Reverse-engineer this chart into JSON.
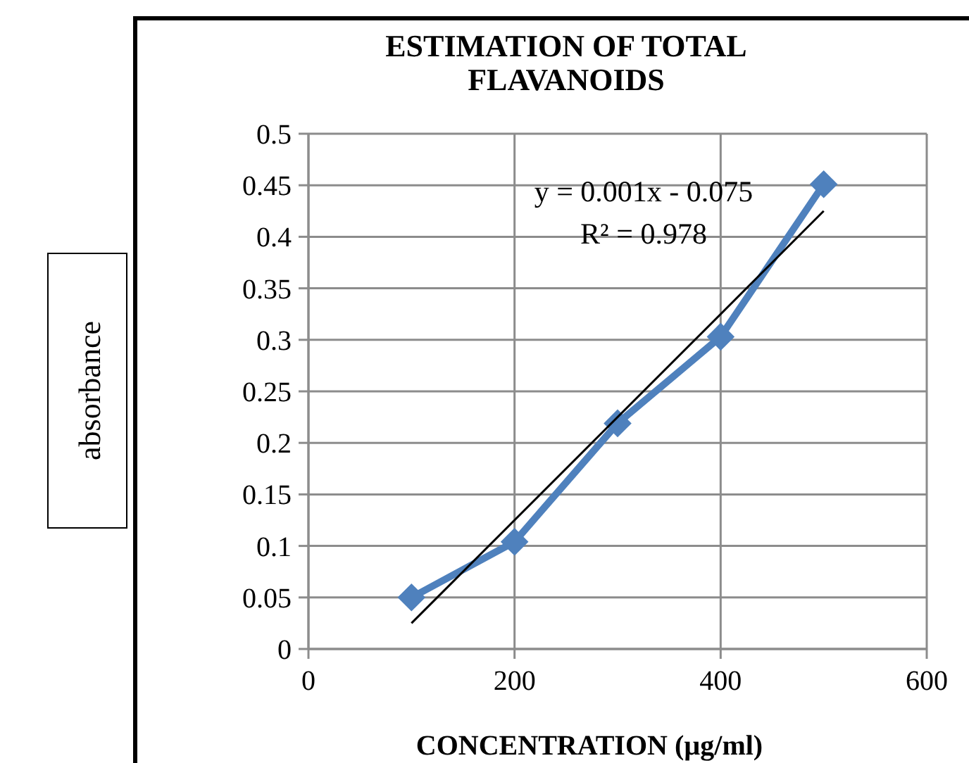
{
  "chart_data": {
    "type": "line",
    "title": "ESTIMATION OF TOTAL FLAVANOIDS",
    "xlabel": "CONCENTRATION (µg/ml)",
    "ylabel": "absorbance",
    "xlim": [
      0,
      600
    ],
    "xticks": [
      0,
      200,
      400,
      600
    ],
    "ylim": [
      0,
      0.5
    ],
    "yticks": [
      0,
      0.05,
      0.1,
      0.15,
      0.2,
      0.25,
      0.3,
      0.35,
      0.4,
      0.45,
      0.5
    ],
    "grid": true,
    "series": [
      {
        "color": "#4f81bd",
        "x": [
          100,
          200,
          300,
          400,
          500
        ],
        "values": [
          0.05,
          0.104,
          0.219,
          0.303,
          0.451
        ],
        "marker": "diamond"
      },
      {
        "type": "line",
        "color": "#000000",
        "x": [
          100,
          500
        ],
        "values": [
          0.025,
          0.425
        ],
        "marker": "none"
      }
    ],
    "annotations": [
      "y = 0.001x - 0.075",
      "R² = 0.978"
    ]
  }
}
